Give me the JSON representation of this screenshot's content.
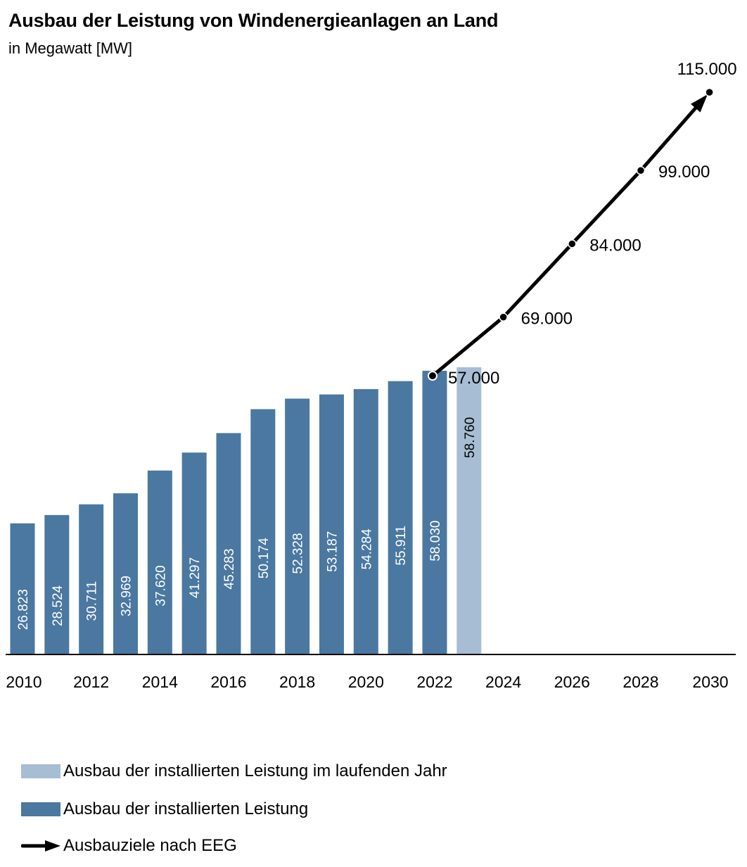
{
  "header": {
    "title": "Ausbau der Leistung von Windenergieanlagen an Land",
    "subtitle": "in Megawatt [MW]"
  },
  "colors": {
    "bar_installed": "#4a78a0",
    "bar_current_year": "#a7bdd4",
    "target_arrow": "#000000"
  },
  "chart_data": {
    "type": "bar",
    "x_ticks": [
      "2010",
      "2012",
      "2014",
      "2016",
      "2018",
      "2020",
      "2022",
      "2024",
      "2026",
      "2028",
      "2030"
    ],
    "series": [
      {
        "name": "Ausbau der installierten Leistung",
        "x": [
          2010,
          2011,
          2012,
          2013,
          2014,
          2015,
          2016,
          2017,
          2018,
          2019,
          2020,
          2021,
          2022
        ],
        "values": [
          26823,
          28524,
          30711,
          32969,
          37620,
          41297,
          45283,
          50174,
          52328,
          53187,
          54284,
          55911,
          58030
        ],
        "labels": [
          "26.823",
          "28.524",
          "30.711",
          "32.969",
          "37.620",
          "41.297",
          "45.283",
          "50.174",
          "52.328",
          "53.187",
          "54.284",
          "55.911",
          "58.030"
        ]
      },
      {
        "name": "Ausbau der installierten Leistung im laufenden Jahr",
        "x": [
          2023
        ],
        "values": [
          58760
        ],
        "labels": [
          "58.760"
        ]
      },
      {
        "name": "Ausbauziele nach EEG",
        "type": "line",
        "x": [
          2022,
          2024,
          2026,
          2028,
          2030
        ],
        "values": [
          57000,
          69000,
          84000,
          99000,
          115000
        ],
        "labels": [
          "57.000",
          "69.000",
          "84.000",
          "99.000",
          "115.000"
        ]
      }
    ],
    "ylim": [
      0,
      115000
    ]
  },
  "legend": {
    "current_year": "Ausbau der installierten Leistung im laufenden Jahr",
    "installed": "Ausbau der installierten Leistung",
    "targets": "Ausbauziele nach EEG"
  }
}
